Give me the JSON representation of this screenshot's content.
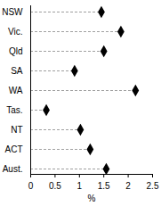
{
  "chart_data": {
    "type": "dot",
    "orientation": "horizontal",
    "categories": [
      "NSW",
      "Vic.",
      "Qld",
      "SA",
      "WA",
      "Tas.",
      "NT",
      "ACT",
      "Aust."
    ],
    "values": [
      1.45,
      1.85,
      1.5,
      0.9,
      2.15,
      0.32,
      1.02,
      1.22,
      1.55
    ],
    "color": "#000000",
    "marker": "diamond",
    "line_style": "dashed",
    "xlabel": "%",
    "xlim": [
      0,
      2.5
    ],
    "xticks": [
      0,
      0.5,
      1,
      1.5,
      2,
      2.5
    ]
  }
}
